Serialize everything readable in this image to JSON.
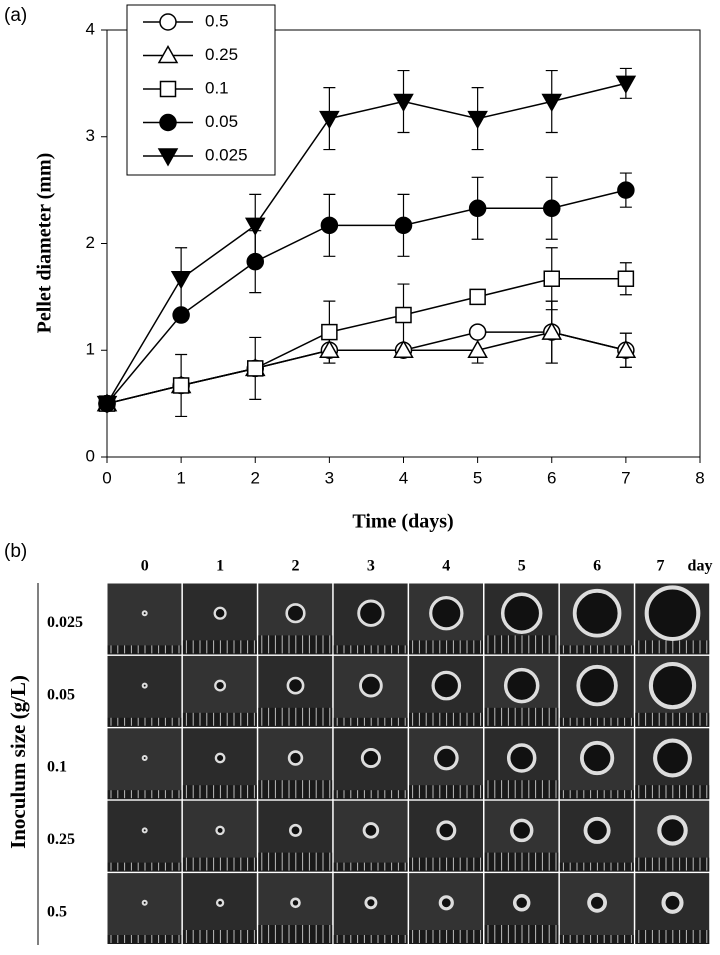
{
  "panel_labels": [
    "(a)",
    "(b)"
  ],
  "chart_data": {
    "type": "line",
    "x_label": "Time (days)",
    "y_label": "Pellet diameter (mm)",
    "x": [
      0,
      1,
      2,
      3,
      4,
      5,
      6,
      7
    ],
    "xlim": [
      0,
      8
    ],
    "xticks": [
      0,
      1,
      2,
      3,
      4,
      5,
      6,
      7,
      8
    ],
    "ylim": [
      0,
      4
    ],
    "yticks": [
      0,
      1,
      2,
      3,
      4
    ],
    "legend": "upper left",
    "series": [
      {
        "name": "0.5",
        "color": "#000000",
        "marker": "circle-open",
        "values": [
          0.5,
          0.67,
          0.83,
          1.0,
          1.0,
          1.17,
          1.17,
          1.0
        ],
        "errors": [
          0,
          0,
          0,
          0,
          0,
          0,
          0.29,
          0.16
        ]
      },
      {
        "name": "0.25",
        "color": "#000000",
        "marker": "triangle-open",
        "values": [
          0.5,
          0.67,
          0.83,
          1.0,
          1.0,
          1.0,
          1.17,
          1.0
        ],
        "errors": [
          0,
          0,
          0,
          0.12,
          0,
          0.12,
          0.29,
          0.16
        ]
      },
      {
        "name": "0.1",
        "color": "#000000",
        "marker": "square-open",
        "values": [
          0.5,
          0.67,
          0.83,
          1.17,
          1.33,
          1.5,
          1.67,
          1.67
        ],
        "errors": [
          0,
          0.29,
          0.29,
          0.29,
          0.29,
          0,
          0.29,
          0.15
        ]
      },
      {
        "name": "0.05",
        "color": "#000000",
        "marker": "circle-filled",
        "values": [
          0.5,
          1.33,
          1.83,
          2.17,
          2.17,
          2.33,
          2.33,
          2.5
        ],
        "errors": [
          0,
          0,
          0.29,
          0.29,
          0.29,
          0.29,
          0.29,
          0.16
        ]
      },
      {
        "name": "0.025",
        "color": "#000000",
        "marker": "triangle-down-filled",
        "values": [
          0.5,
          1.67,
          2.17,
          3.17,
          3.33,
          3.17,
          3.33,
          3.5
        ],
        "errors": [
          0,
          0.29,
          0.29,
          0.29,
          0.29,
          0.29,
          0.29,
          0.14
        ]
      }
    ]
  },
  "image_grid": {
    "y_label": "Inoculum size (g/L)",
    "columns": [
      "0",
      "1",
      "2",
      "3",
      "4",
      "5",
      "6",
      "7"
    ],
    "column_unit": "day",
    "rows": [
      "0.025",
      "0.05",
      "0.1",
      "0.25",
      "0.5"
    ]
  }
}
